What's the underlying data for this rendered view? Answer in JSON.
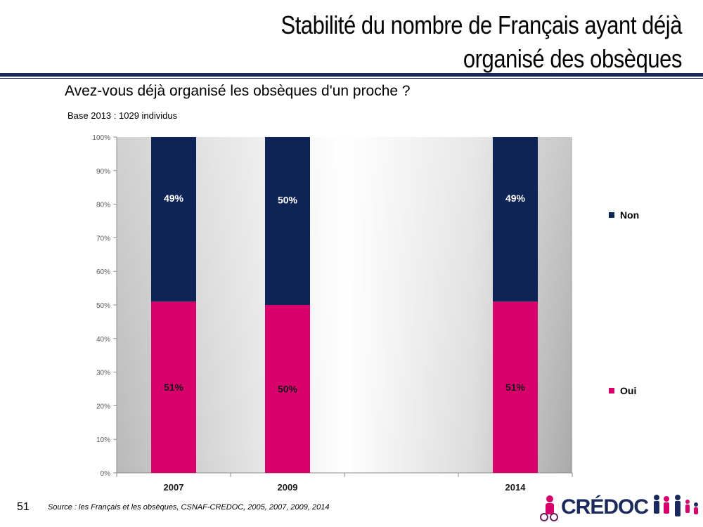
{
  "header": {
    "title_line1": "Stabilité du nombre de Français ayant déjà",
    "title_line2": "organisé des obsèques"
  },
  "question": "Avez-vous déjà organisé les obsèques d'un proche ?",
  "base_note": "Base 2013 : 1029 individus",
  "footer": {
    "page_number": "51",
    "source": "Source : les Français et les obsèques, CSNAF-CREDOC, 2005, 2007, 2009, 2014",
    "logo_text": "CRÉDOC"
  },
  "colors": {
    "non": "#0f2456",
    "oui": "#d9006c",
    "header_rule": "#1b2a5c"
  },
  "legend": [
    {
      "label": "Non",
      "color": "#0f2456"
    },
    {
      "label": "Oui",
      "color": "#d9006c"
    }
  ],
  "chart_data": {
    "type": "bar",
    "stacked": true,
    "categories": [
      "2007",
      "2009",
      "2014"
    ],
    "category_slots": [
      0,
      1,
      3
    ],
    "slot_count": 4,
    "series": [
      {
        "name": "Oui",
        "values": [
          51,
          50,
          51
        ],
        "labels": [
          "51%",
          "50%",
          "51%"
        ],
        "color": "#d9006c"
      },
      {
        "name": "Non",
        "values": [
          49,
          50,
          49
        ],
        "labels": [
          "49%",
          "50%",
          "49%"
        ],
        "color": "#0f2456"
      }
    ],
    "y_ticks": [
      "0%",
      "10%",
      "20%",
      "30%",
      "40%",
      "50%",
      "60%",
      "70%",
      "80%",
      "90%",
      "100%"
    ],
    "ylim": [
      0,
      100
    ],
    "legend_position": "right"
  }
}
